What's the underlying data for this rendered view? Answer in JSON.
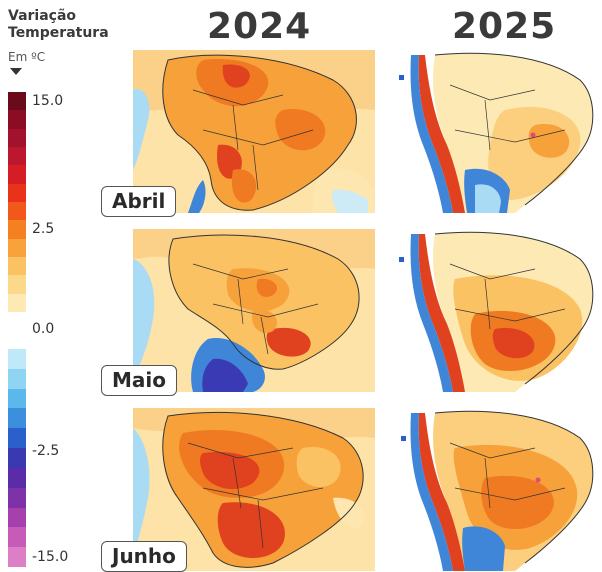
{
  "legend": {
    "title_line1": "Variação",
    "title_line2": "Temperatura",
    "unit": "Em ºC",
    "labels": [
      "15.0",
      "2.5",
      "0.0",
      "-2.5",
      "-15.0"
    ],
    "warm_colors": [
      "#6b0a1a",
      "#8a0d24",
      "#a3122c",
      "#bd1730",
      "#d51d26",
      "#e9321a",
      "#f2571b",
      "#f5801f",
      "#f8a23c",
      "#fbc263",
      "#fcd98a",
      "#fde9b4"
    ],
    "cool_colors": [
      "#bfe8f8",
      "#8fd4f2",
      "#5cb8ea",
      "#3b8fdc",
      "#2b5fcc",
      "#3a39b0",
      "#5b2ca8",
      "#7e32a8",
      "#a540ad",
      "#c75cb8",
      "#dd7fc7"
    ]
  },
  "years": [
    "2024",
    "2025"
  ],
  "months": [
    "Abril",
    "Maio",
    "Junho"
  ],
  "palette": {
    "cream": "#fde6b0",
    "light_orange": "#fbcf7e",
    "orange": "#f6a13a",
    "dark_orange": "#ef7a22",
    "red": "#e0421f",
    "light_blue": "#a9dcf4",
    "blue": "#3f86d8",
    "deep_blue": "#3a3bb4",
    "land_white": "#ffffff",
    "border": "#333333"
  }
}
